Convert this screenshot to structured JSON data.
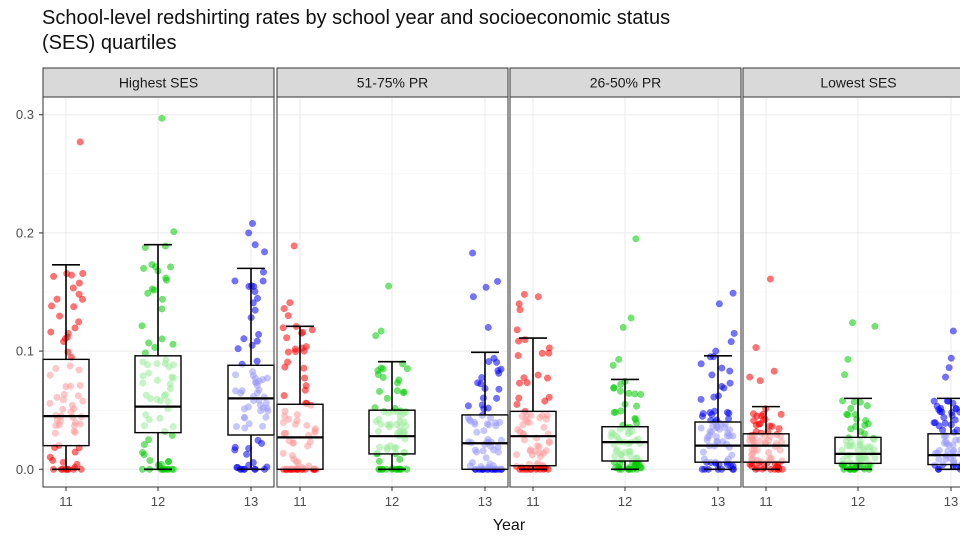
{
  "chart_data": {
    "type": "boxplot",
    "title": "School-level redshirting rates by school year and socioeconomic status (SES) quartiles",
    "xlabel": "Year",
    "ylabel": "",
    "ylim": [
      -0.015,
      0.315
    ],
    "yticks": [
      0.0,
      0.1,
      0.2,
      0.3
    ],
    "ytick_labels": [
      "0.0",
      "0.1",
      "0.2",
      "0.3"
    ],
    "categories": [
      "11",
      "12",
      "13"
    ],
    "series_colors": {
      "11": "#ff0000",
      "12": "#00cc00",
      "13": "#0000ff"
    },
    "facets": [
      {
        "label": "Highest SES",
        "boxes": [
          {
            "year": "11",
            "min": 0.0,
            "q1": 0.02,
            "median": 0.045,
            "q3": 0.093,
            "max": 0.173,
            "outliers": [
              0.277
            ]
          },
          {
            "year": "12",
            "min": 0.0,
            "q1": 0.031,
            "median": 0.053,
            "q3": 0.096,
            "max": 0.19,
            "outliers": [
              0.297,
              0.201
            ]
          },
          {
            "year": "13",
            "min": 0.0,
            "q1": 0.029,
            "median": 0.06,
            "q3": 0.088,
            "max": 0.17,
            "outliers": [
              0.208,
              0.2,
              0.19,
              0.184
            ]
          }
        ]
      },
      {
        "label": "51-75% PR",
        "boxes": [
          {
            "year": "11",
            "min": 0.0,
            "q1": 0.0,
            "median": 0.027,
            "q3": 0.055,
            "max": 0.121,
            "outliers": [
              0.189,
              0.141,
              0.136,
              0.13
            ]
          },
          {
            "year": "12",
            "min": 0.0,
            "q1": 0.013,
            "median": 0.028,
            "q3": 0.05,
            "max": 0.091,
            "outliers": [
              0.155,
              0.117,
              0.113
            ]
          },
          {
            "year": "13",
            "min": 0.0,
            "q1": 0.0,
            "median": 0.022,
            "q3": 0.046,
            "max": 0.099,
            "outliers": [
              0.183,
              0.159,
              0.154,
              0.146,
              0.12
            ]
          }
        ]
      },
      {
        "label": "26-50% PR",
        "boxes": [
          {
            "year": "11",
            "min": 0.0,
            "q1": 0.003,
            "median": 0.028,
            "q3": 0.049,
            "max": 0.111,
            "outliers": [
              0.148,
              0.146,
              0.14,
              0.135,
              0.118
            ]
          },
          {
            "year": "12",
            "min": 0.0,
            "q1": 0.007,
            "median": 0.023,
            "q3": 0.036,
            "max": 0.076,
            "outliers": [
              0.195,
              0.128,
              0.12,
              0.093,
              0.088
            ]
          },
          {
            "year": "13",
            "min": 0.0,
            "q1": 0.006,
            "median": 0.02,
            "q3": 0.04,
            "max": 0.096,
            "outliers": [
              0.149,
              0.14,
              0.115,
              0.108,
              0.1
            ]
          }
        ]
      },
      {
        "label": "Lowest SES",
        "boxes": [
          {
            "year": "11",
            "min": 0.0,
            "q1": 0.006,
            "median": 0.02,
            "q3": 0.03,
            "max": 0.053,
            "outliers": [
              0.161,
              0.103,
              0.083,
              0.078,
              0.075
            ]
          },
          {
            "year": "12",
            "min": 0.0,
            "q1": 0.005,
            "median": 0.013,
            "q3": 0.027,
            "max": 0.06,
            "outliers": [
              0.124,
              0.121,
              0.093,
              0.08
            ]
          },
          {
            "year": "13",
            "min": 0.0,
            "q1": 0.004,
            "median": 0.012,
            "q3": 0.03,
            "max": 0.06,
            "outliers": [
              0.117,
              0.094,
              0.086,
              0.078
            ]
          }
        ]
      }
    ]
  }
}
